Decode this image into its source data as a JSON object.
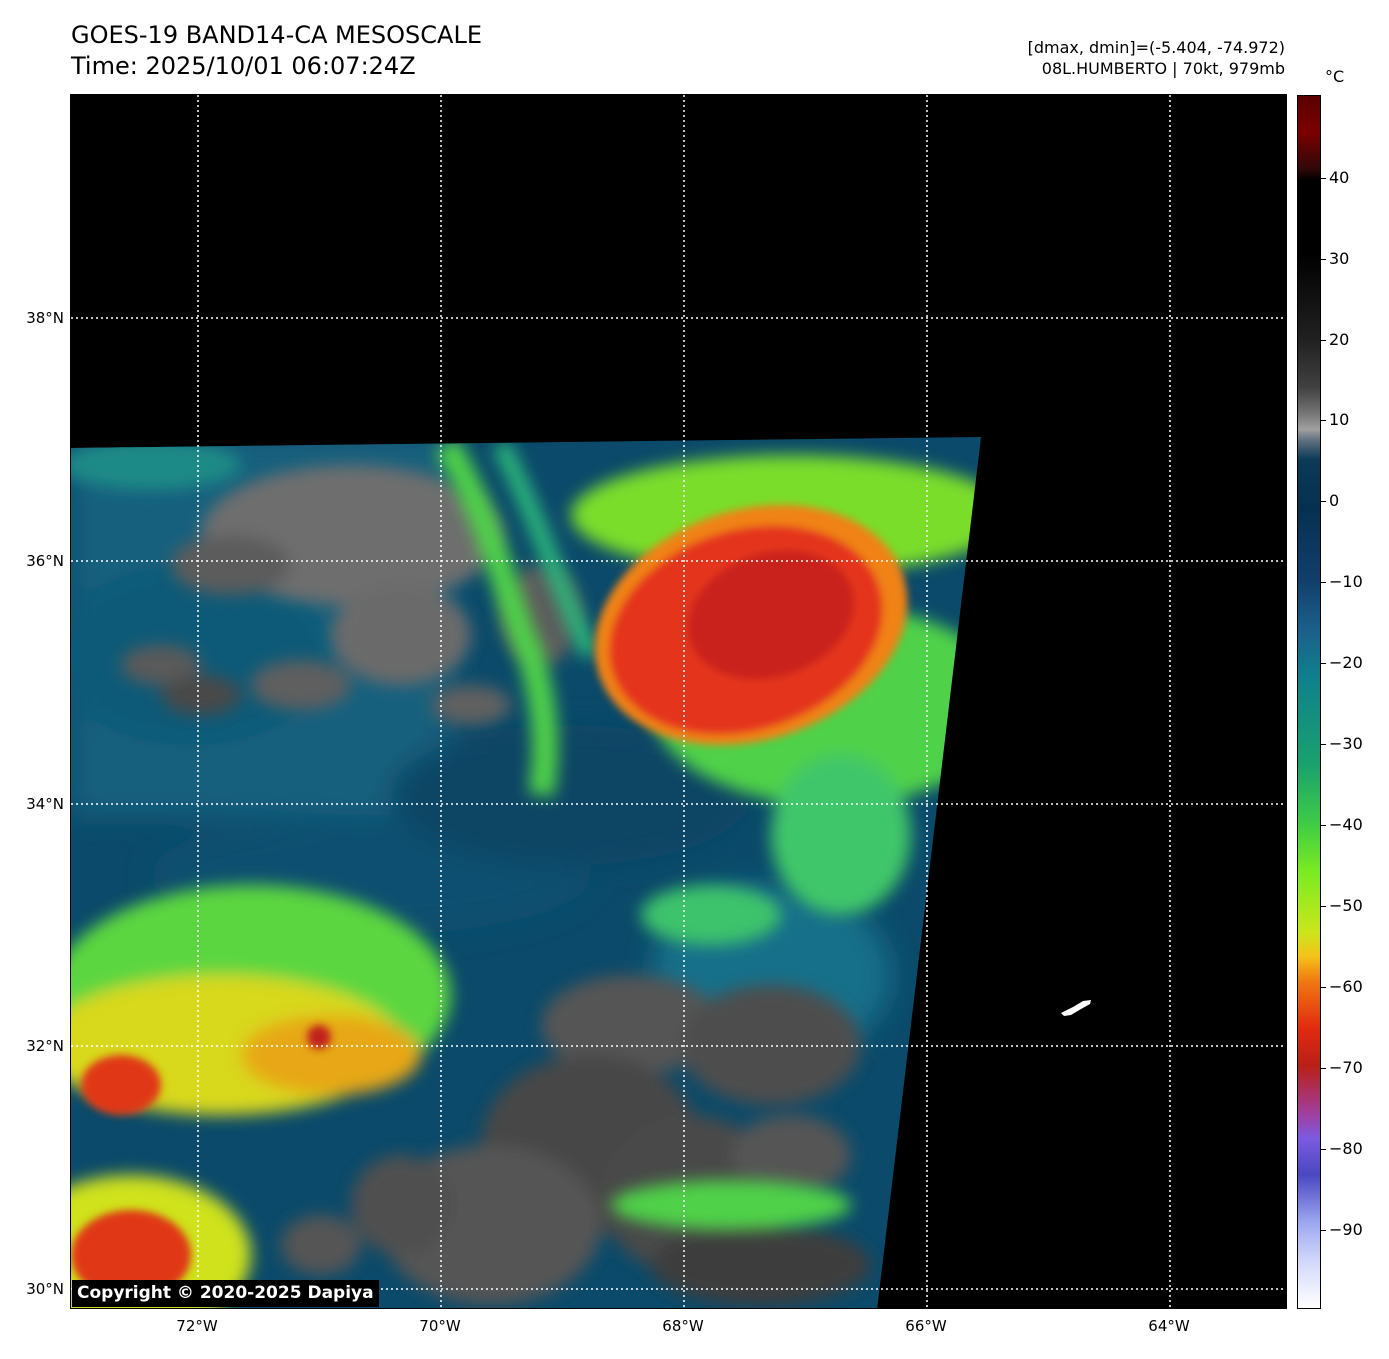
{
  "header": {
    "title": "GOES-19 BAND14-CA MESOSCALE",
    "time": "Time: 2025/10/01 06:07:24Z",
    "range_text": "[dmax, dmin]=(-5.404, -74.972)",
    "storm_text": "08L.HUMBERTO | 70kt, 979mb"
  },
  "map": {
    "lat_labels": [
      "38°N",
      "36°N",
      "34°N",
      "32°N",
      "30°N"
    ],
    "lon_labels": [
      "72°W",
      "70°W",
      "68°W",
      "66°W",
      "64°W"
    ],
    "copyright": "Copyright © 2020-2025 Dapiya"
  },
  "colorbar": {
    "unit": "°C",
    "ticks": [
      "40",
      "30",
      "20",
      "10",
      "0",
      "−10",
      "−20",
      "−30",
      "−40",
      "−50",
      "−60",
      "−70",
      "−80",
      "−90"
    ]
  }
}
